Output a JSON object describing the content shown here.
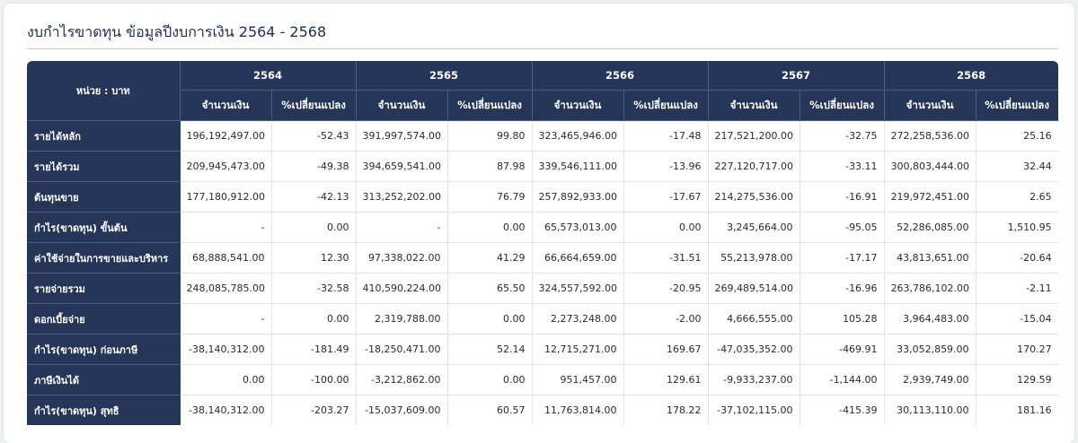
{
  "page": {
    "title": "งบกำไรขาดทุน ข้อมูลปีงบการเงิน 2564 - 2568"
  },
  "table": {
    "unit_label": "หน่วย : บาท",
    "years": [
      "2564",
      "2565",
      "2566",
      "2567",
      "2568"
    ],
    "sub_headers": {
      "amount": "จำนวนเงิน",
      "change": "%เปลี่ยนแปลง"
    },
    "rows": [
      {
        "label": "รายได้หลัก",
        "cells": [
          "196,192,497.00",
          "-52.43",
          "391,997,574.00",
          "99.80",
          "323,465,946.00",
          "-17.48",
          "217,521,200.00",
          "-32.75",
          "272,258,536.00",
          "25.16"
        ]
      },
      {
        "label": "รายได้รวม",
        "cells": [
          "209,945,473.00",
          "-49.38",
          "394,659,541.00",
          "87.98",
          "339,546,111.00",
          "-13.96",
          "227,120,717.00",
          "-33.11",
          "300,803,444.00",
          "32.44"
        ]
      },
      {
        "label": "ต้นทุนขาย",
        "cells": [
          "177,180,912.00",
          "-42.13",
          "313,252,202.00",
          "76.79",
          "257,892,933.00",
          "-17.67",
          "214,275,536.00",
          "-16.91",
          "219,972,451.00",
          "2.65"
        ]
      },
      {
        "label": "กำไร(ขาดทุน) ขั้นต้น",
        "cells": [
          "-",
          "0.00",
          "-",
          "0.00",
          "65,573,013.00",
          "0.00",
          "3,245,664.00",
          "-95.05",
          "52,286,085.00",
          "1,510.95"
        ]
      },
      {
        "label": "ค่าใช้จ่ายในการขายและบริหาร",
        "cells": [
          "68,888,541.00",
          "12.30",
          "97,338,022.00",
          "41.29",
          "66,664,659.00",
          "-31.51",
          "55,213,978.00",
          "-17.17",
          "43,813,651.00",
          "-20.64"
        ]
      },
      {
        "label": "รายจ่ายรวม",
        "cells": [
          "248,085,785.00",
          "-32.58",
          "410,590,224.00",
          "65.50",
          "324,557,592.00",
          "-20.95",
          "269,489,514.00",
          "-16.96",
          "263,786,102.00",
          "-2.11"
        ]
      },
      {
        "label": "ดอกเบี้ยจ่าย",
        "cells": [
          "-",
          "0.00",
          "2,319,788.00",
          "0.00",
          "2,273,248.00",
          "-2.00",
          "4,666,555.00",
          "105.28",
          "3,964,483.00",
          "-15.04"
        ]
      },
      {
        "label": "กำไร(ขาดทุน) ก่อนภาษี",
        "cells": [
          "-38,140,312.00",
          "-181.49",
          "-18,250,471.00",
          "52.14",
          "12,715,271.00",
          "169.67",
          "-47,035,352.00",
          "-469.91",
          "33,052,859.00",
          "170.27"
        ]
      },
      {
        "label": "ภาษีเงินได้",
        "cells": [
          "0.00",
          "-100.00",
          "-3,212,862.00",
          "0.00",
          "951,457.00",
          "129.61",
          "-9,933,237.00",
          "-1,144.00",
          "2,939,749.00",
          "129.59"
        ]
      },
      {
        "label": "กำไร(ขาดทุน) สุทธิ",
        "cells": [
          "-38,140,312.00",
          "-203.27",
          "-15,037,609.00",
          "60.57",
          "11,763,814.00",
          "178.22",
          "-37,102,115.00",
          "-415.39",
          "30,113,110.00",
          "181.16"
        ]
      }
    ]
  }
}
